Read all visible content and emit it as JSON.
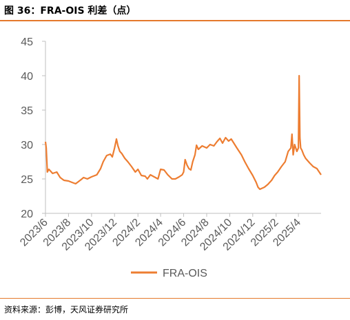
{
  "header": {
    "title": "图 36：FRA-OIS 利差（点）"
  },
  "footer": {
    "source": "资料来源：彭博，天风证券研究所"
  },
  "colors": {
    "accent": "#E5782B",
    "axis": "#BFBFBF",
    "line": "#ED7D31"
  },
  "chart_data": {
    "type": "line",
    "title": "",
    "xlabel": "",
    "ylabel": "",
    "ylim": [
      20,
      45
    ],
    "yticks": [
      20,
      25,
      30,
      35,
      40,
      45
    ],
    "xticks": [
      "2023/6",
      "2023/8",
      "2023/10",
      "2023/12",
      "2024/2",
      "2024/4",
      "2024/6",
      "2024/8",
      "2024/10",
      "2024/12",
      "2025/2",
      "2025/4"
    ],
    "xrange": [
      "2023-06-01",
      "2025-05-31"
    ],
    "legend": "bottom-center",
    "grid": false,
    "series": [
      {
        "name": "FRA-OIS",
        "x": [
          "2023-06-01",
          "2023-06-03",
          "2023-06-06",
          "2023-06-10",
          "2023-06-20",
          "2023-07-01",
          "2023-07-10",
          "2023-07-20",
          "2023-08-01",
          "2023-08-10",
          "2023-08-20",
          "2023-09-01",
          "2023-09-10",
          "2023-09-20",
          "2023-10-01",
          "2023-10-15",
          "2023-10-25",
          "2023-11-01",
          "2023-11-10",
          "2023-11-20",
          "2023-11-25",
          "2023-12-01",
          "2023-12-06",
          "2023-12-10",
          "2023-12-15",
          "2023-12-20",
          "2023-12-28",
          "2024-01-05",
          "2024-01-15",
          "2024-01-25",
          "2024-02-01",
          "2024-02-05",
          "2024-02-10",
          "2024-02-20",
          "2024-02-26",
          "2024-03-05",
          "2024-03-15",
          "2024-03-25",
          "2024-04-01",
          "2024-04-10",
          "2024-04-20",
          "2024-05-01",
          "2024-05-10",
          "2024-05-20",
          "2024-05-28",
          "2024-06-01",
          "2024-06-05",
          "2024-06-10",
          "2024-06-15",
          "2024-06-20",
          "2024-06-25",
          "2024-07-01",
          "2024-07-05",
          "2024-07-10",
          "2024-07-20",
          "2024-08-01",
          "2024-08-10",
          "2024-08-20",
          "2024-08-28",
          "2024-09-05",
          "2024-09-12",
          "2024-09-20",
          "2024-09-28",
          "2024-10-05",
          "2024-10-12",
          "2024-10-20",
          "2024-11-01",
          "2024-11-10",
          "2024-11-20",
          "2024-12-01",
          "2024-12-10",
          "2024-12-15",
          "2024-12-20",
          "2025-01-01",
          "2025-01-10",
          "2025-01-20",
          "2025-01-28",
          "2025-02-05",
          "2025-02-15",
          "2025-02-25",
          "2025-03-05",
          "2025-03-12",
          "2025-03-15",
          "2025-03-18",
          "2025-03-22",
          "2025-03-28",
          "2025-04-01",
          "2025-04-03",
          "2025-04-05",
          "2025-04-07",
          "2025-04-10",
          "2025-04-15",
          "2025-04-20",
          "2025-05-01",
          "2025-05-10",
          "2025-05-20",
          "2025-05-31"
        ],
        "values": [
          30.4,
          29.5,
          26.0,
          26.4,
          25.8,
          26.0,
          25.2,
          24.8,
          24.7,
          24.5,
          24.3,
          24.8,
          25.2,
          25.0,
          25.3,
          25.6,
          26.5,
          27.5,
          28.4,
          28.6,
          28.2,
          29.5,
          30.8,
          29.8,
          29.0,
          28.7,
          28.0,
          27.5,
          26.8,
          26.0,
          26.4,
          26.0,
          25.5,
          25.4,
          25.0,
          25.6,
          25.3,
          25.0,
          26.4,
          26.3,
          25.6,
          25.0,
          25.0,
          25.3,
          25.6,
          26.0,
          27.8,
          27.0,
          26.5,
          26.3,
          27.5,
          28.5,
          29.9,
          29.3,
          29.8,
          29.5,
          30.0,
          29.8,
          30.4,
          30.9,
          30.2,
          31.0,
          30.5,
          30.8,
          30.2,
          29.5,
          28.5,
          27.5,
          26.5,
          25.5,
          24.5,
          23.8,
          23.5,
          23.8,
          24.2,
          24.8,
          25.5,
          26.0,
          26.8,
          27.5,
          29.0,
          29.5,
          31.5,
          28.5,
          30.0,
          29.0,
          29.5,
          40.0,
          31.0,
          29.5,
          29.2,
          28.5,
          28.0,
          27.3,
          26.8,
          26.5,
          25.6
        ]
      }
    ]
  }
}
